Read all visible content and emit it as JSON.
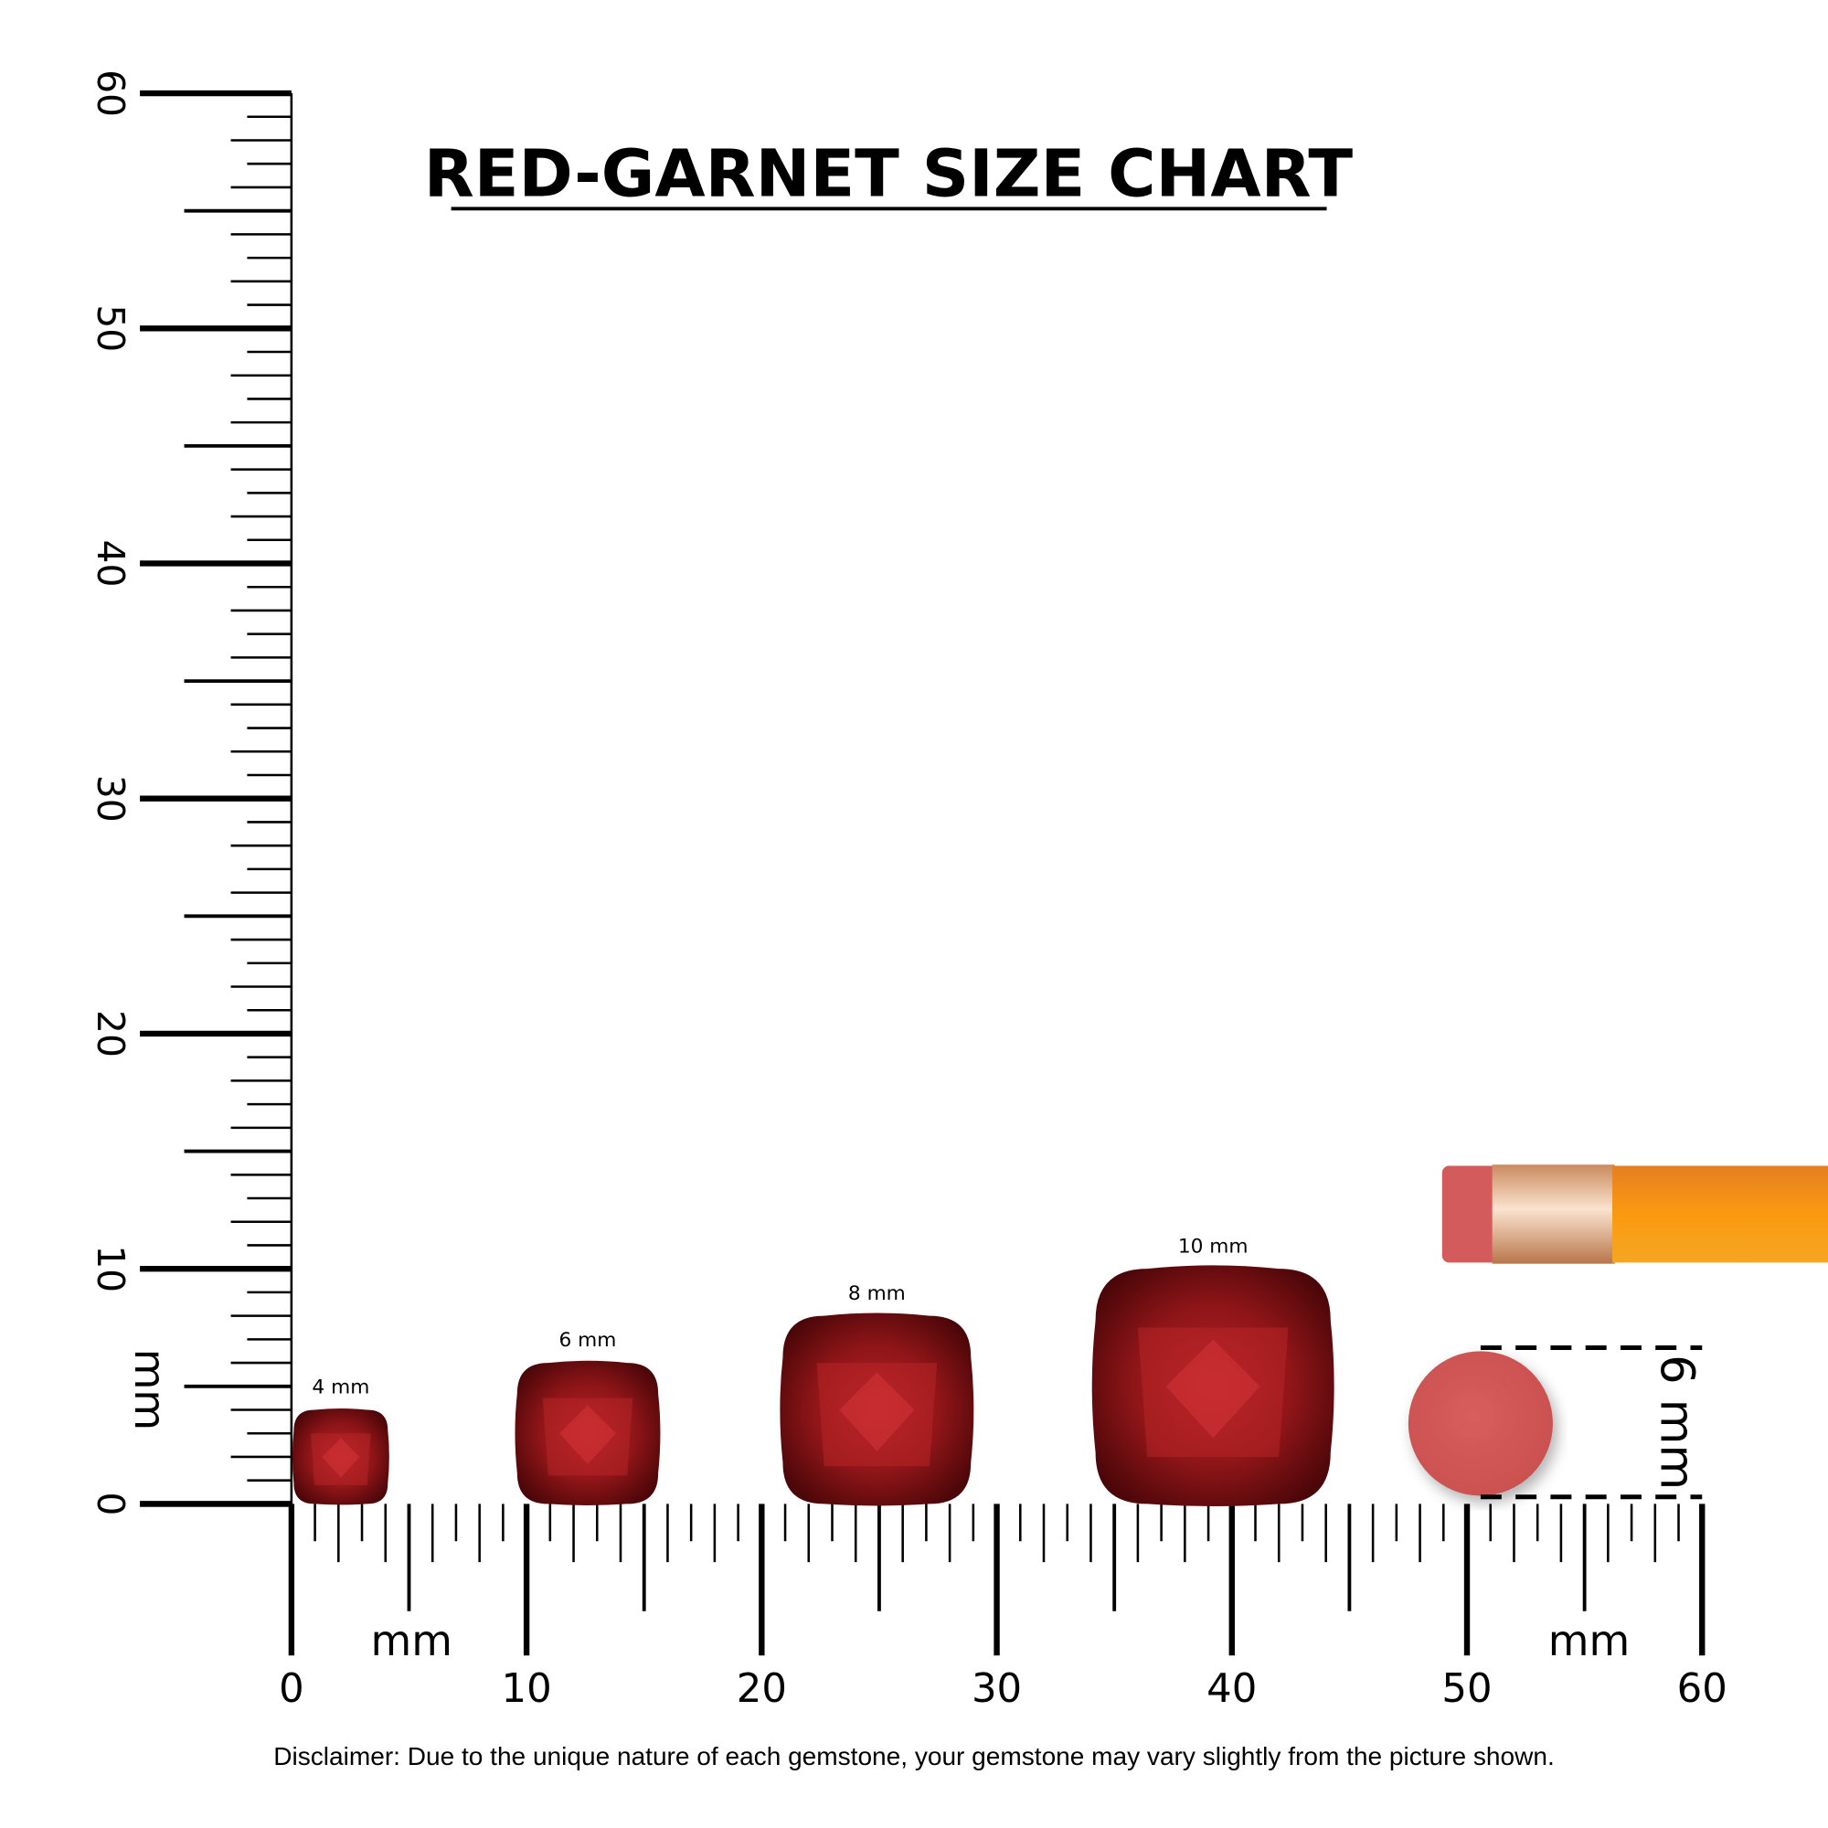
{
  "chart_data": {
    "type": "size-comparison",
    "title": "RED-GARNET SIZE CHART",
    "unit_label": "mm",
    "x_axis": {
      "range": [
        0,
        60
      ],
      "ticks": [
        "0",
        "10",
        "20",
        "30",
        "40",
        "50",
        "60"
      ],
      "label": "mm"
    },
    "y_axis": {
      "range": [
        0,
        60
      ],
      "ticks": [
        "0",
        "10",
        "20",
        "30",
        "40",
        "50",
        "60"
      ],
      "label": "mm"
    },
    "gems": [
      {
        "label": "4 mm",
        "size": 4,
        "x_start": 0
      },
      {
        "label": "6 mm",
        "size": 6,
        "x_start": 9.5
      },
      {
        "label": "8 mm",
        "size": 8,
        "x_start": 20.8
      },
      {
        "label": "10 mm",
        "size": 10,
        "x_start": 34.1
      }
    ],
    "reference": {
      "object": "pencil eraser",
      "label": "6 mm",
      "size": 6
    },
    "colors": {
      "gem": "#8e1518",
      "gem_light": "#c0272b",
      "eraser": "#d35b5b",
      "pencil": "#f7931e",
      "ferrule": "#d9a37a"
    }
  },
  "disclaimer": "Disclaimer: Due to the unique nature of each gemstone, your gemstone may vary slightly from the picture shown."
}
